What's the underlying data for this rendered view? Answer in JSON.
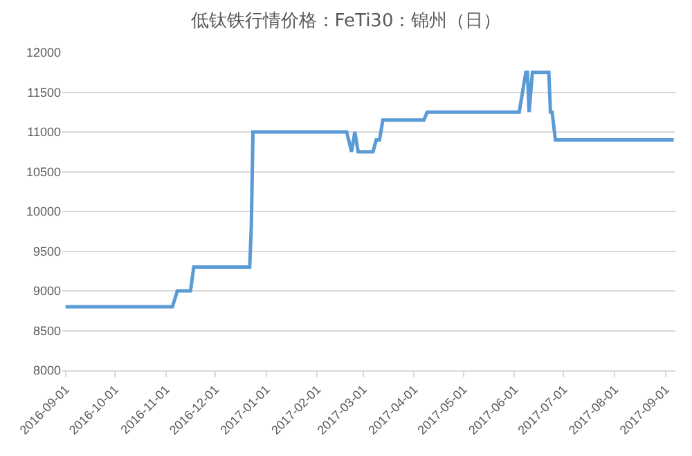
{
  "chart_data": {
    "type": "line",
    "title": "低钛铁行情价格：FeTi30：锦州（日）",
    "x": [
      "2016-09-01",
      "2016-11-05",
      "2016-11-08",
      "2016-11-16",
      "2016-11-18",
      "2016-12-22",
      "2016-12-23",
      "2016-12-24",
      "2017-02-19",
      "2017-02-22",
      "2017-02-24",
      "2017-02-26",
      "2017-03-07",
      "2017-03-09",
      "2017-03-11",
      "2017-03-13",
      "2017-04-07",
      "2017-04-09",
      "2017-06-04",
      "2017-06-08",
      "2017-06-09",
      "2017-06-10",
      "2017-06-12",
      "2017-06-22",
      "2017-06-23",
      "2017-06-24",
      "2017-06-26",
      "2017-09-06"
    ],
    "series": [
      {
        "color": "#5b9bd5",
        "values": [
          8800,
          8800,
          9000,
          9000,
          9300,
          9300,
          9800,
          11000,
          11000,
          10750,
          11000,
          10750,
          10750,
          10900,
          10900,
          11150,
          11150,
          11250,
          11250,
          11750,
          11750,
          11250,
          11750,
          11750,
          11250,
          11250,
          10900,
          10900
        ]
      }
    ],
    "xlim": [
      "2016-08-30",
      "2017-09-07"
    ],
    "xticks": [
      "2016-09-01",
      "2016-10-01",
      "2016-11-01",
      "2016-12-01",
      "2017-01-01",
      "2017-02-01",
      "2017-03-01",
      "2017-04-01",
      "2017-05-01",
      "2017-06-01",
      "2017-07-01",
      "2017-08-01",
      "2017-09-01"
    ],
    "ylim": [
      8000,
      12000
    ],
    "yticks": [
      8000,
      8500,
      9000,
      9500,
      10000,
      10500,
      11000,
      11500,
      12000
    ],
    "grid": "y",
    "marker": "none",
    "line_style": "solid"
  }
}
